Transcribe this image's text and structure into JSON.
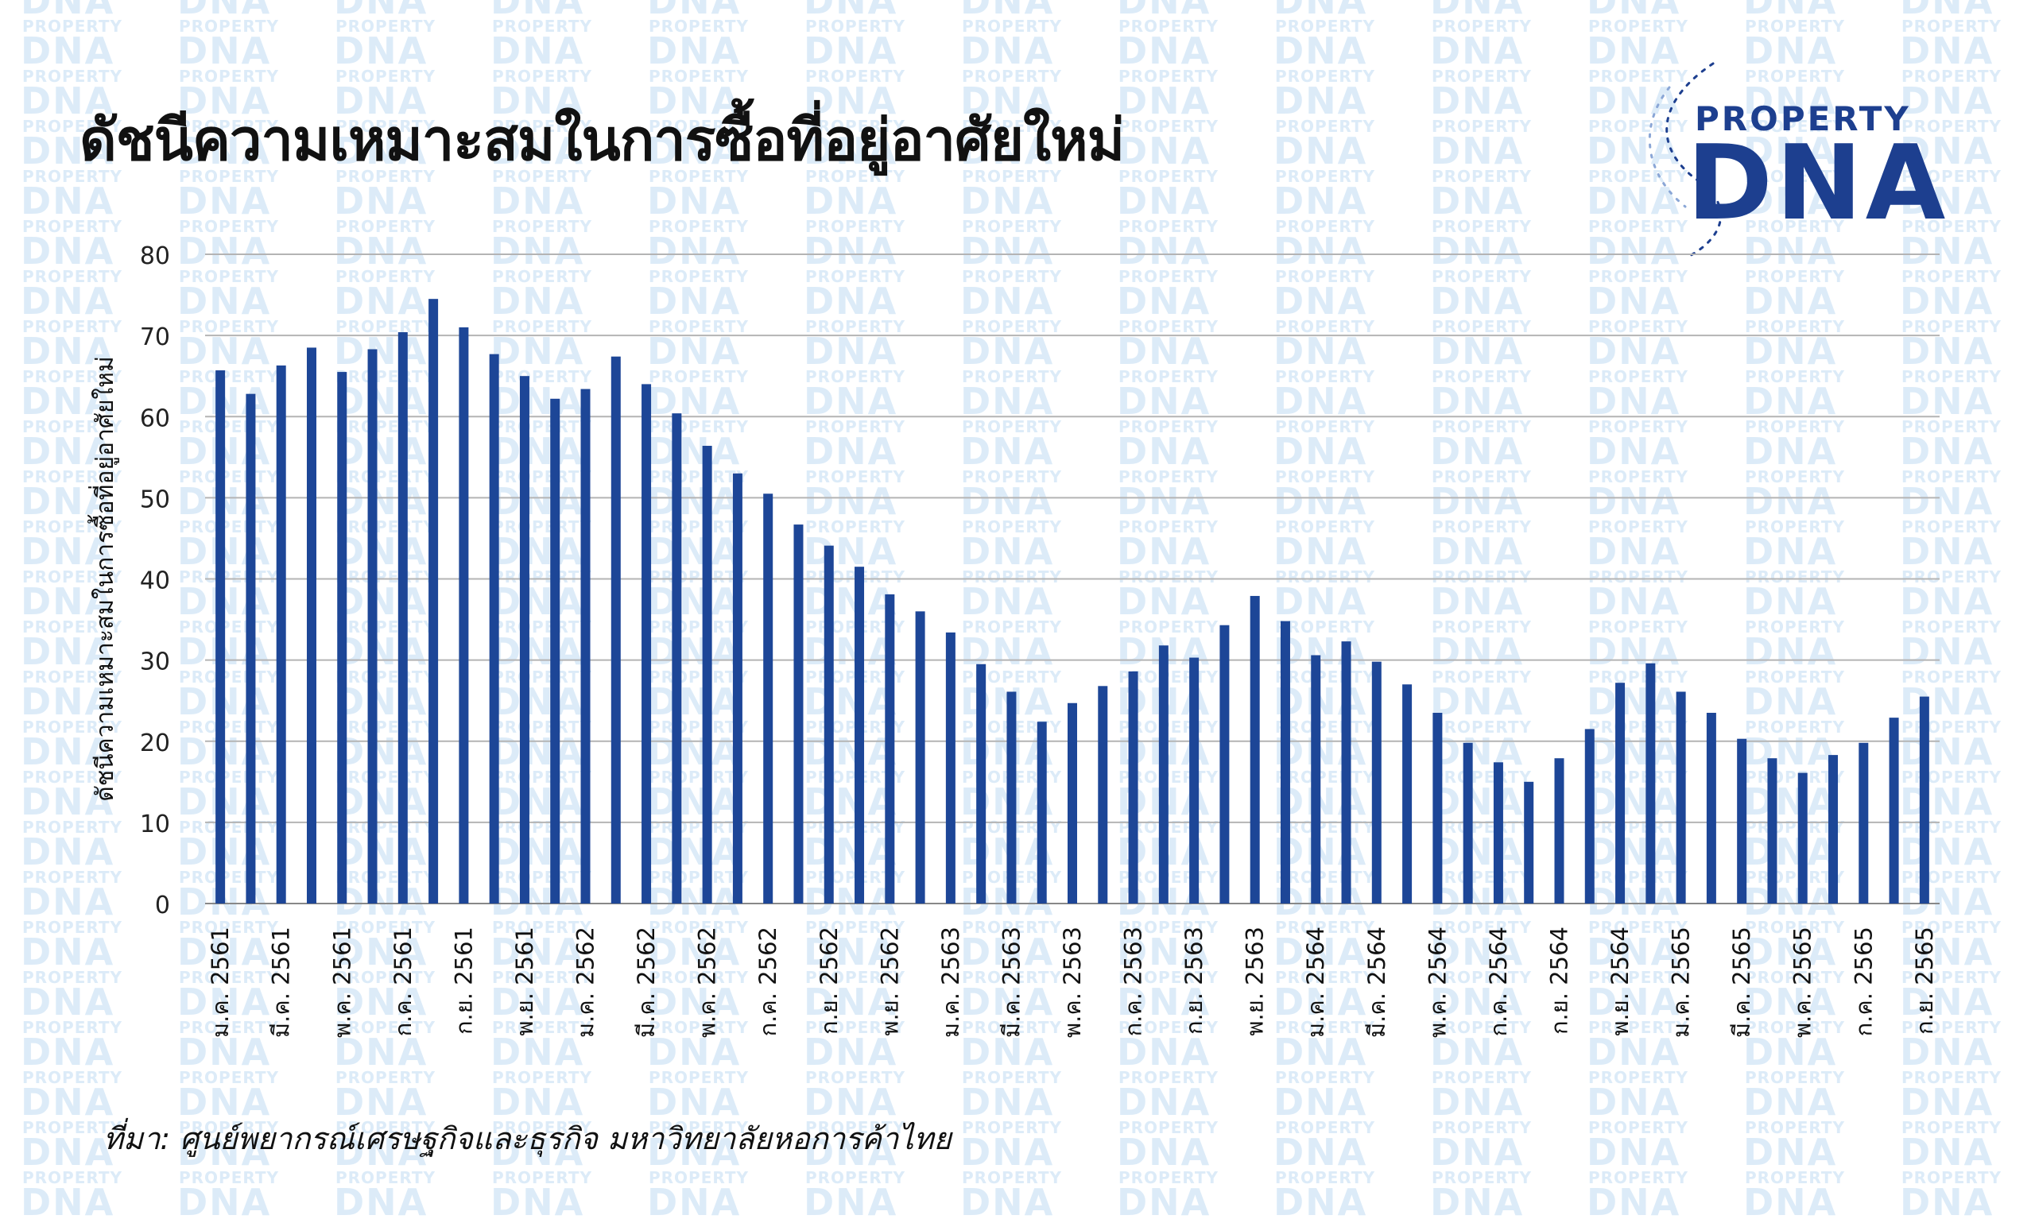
{
  "header": {
    "title": "ดัชนีความเหมาะสมในการซื้อที่อยู่อาศัยใหม่"
  },
  "logo": {
    "top_text": "PROPERTY",
    "main_text": "DNA"
  },
  "watermark": {
    "top_text": "PROPERTY",
    "main_text": "DNA",
    "color": "#dcebf8"
  },
  "footer": {
    "source": "ที่มา: ศูนย์พยากรณ์เศรษฐกิจและธุรกิจ มหาวิทยาลัยหอการค้าไทย"
  },
  "chart_data": {
    "type": "bar",
    "title": "ดัชนีความเหมาะสมในการซื้อที่อยู่อาศัยใหม่",
    "xlabel": "",
    "ylabel": "ดัชนีความเหมาะสมในการซื้อที่อยู่อาศัยใหม่",
    "ylim": [
      0,
      80
    ],
    "yticks": [
      0,
      10,
      20,
      30,
      40,
      50,
      60,
      70,
      80
    ],
    "grid": true,
    "bar_color": "#1d4697",
    "values": [
      65.7,
      62.8,
      66.3,
      68.5,
      65.5,
      68.3,
      70.4,
      74.5,
      71.0,
      67.7,
      65.0,
      62.2,
      63.4,
      67.4,
      64.0,
      60.4,
      56.4,
      53.0,
      50.5,
      46.7,
      44.1,
      41.5,
      38.1,
      36.0,
      33.4,
      29.5,
      26.1,
      22.4,
      24.7,
      26.8,
      28.6,
      31.8,
      30.3,
      34.3,
      37.9,
      34.8,
      30.6,
      32.3,
      29.8,
      27.0,
      23.5,
      19.8,
      17.4,
      15.0,
      17.9,
      21.5,
      27.2,
      29.6,
      26.1,
      23.5,
      20.3,
      17.9,
      16.1,
      18.3,
      19.8,
      22.9,
      25.5
    ],
    "tick_labels": [
      {
        "index": 0,
        "label": "ม.ค. 2561"
      },
      {
        "index": 2,
        "label": "มี.ค. 2561"
      },
      {
        "index": 4,
        "label": "พ.ค. 2561"
      },
      {
        "index": 6,
        "label": "ก.ค. 2561"
      },
      {
        "index": 8,
        "label": "ก.ย. 2561"
      },
      {
        "index": 10,
        "label": "พ.ย. 2561"
      },
      {
        "index": 12,
        "label": "ม.ค. 2562"
      },
      {
        "index": 14,
        "label": "มี.ค. 2562"
      },
      {
        "index": 16,
        "label": "พ.ค. 2562"
      },
      {
        "index": 18,
        "label": "ก.ค. 2562"
      },
      {
        "index": 20,
        "label": "ก.ย. 2562"
      },
      {
        "index": 22,
        "label": "พ.ย. 2562"
      },
      {
        "index": 24,
        "label": "ม.ค. 2563"
      },
      {
        "index": 26,
        "label": "มี.ค. 2563"
      },
      {
        "index": 28,
        "label": "พ.ค. 2563"
      },
      {
        "index": 30,
        "label": "ก.ค. 2563"
      },
      {
        "index": 32,
        "label": "ก.ย. 2563"
      },
      {
        "index": 34,
        "label": "พ.ย. 2563"
      },
      {
        "index": 36,
        "label": "ม.ค. 2564"
      },
      {
        "index": 38,
        "label": "มี.ค. 2564"
      },
      {
        "index": 40,
        "label": "พ.ค. 2564"
      },
      {
        "index": 42,
        "label": "ก.ค. 2564"
      },
      {
        "index": 44,
        "label": "ก.ย. 2564"
      },
      {
        "index": 46,
        "label": "พ.ย. 2564"
      },
      {
        "index": 48,
        "label": "ม.ค. 2565"
      },
      {
        "index": 50,
        "label": "มี.ค. 2565"
      },
      {
        "index": 52,
        "label": "พ.ค. 2565"
      },
      {
        "index": 54,
        "label": "ก.ค. 2565"
      },
      {
        "index": 56,
        "label": "ก.ย. 2565"
      }
    ]
  }
}
